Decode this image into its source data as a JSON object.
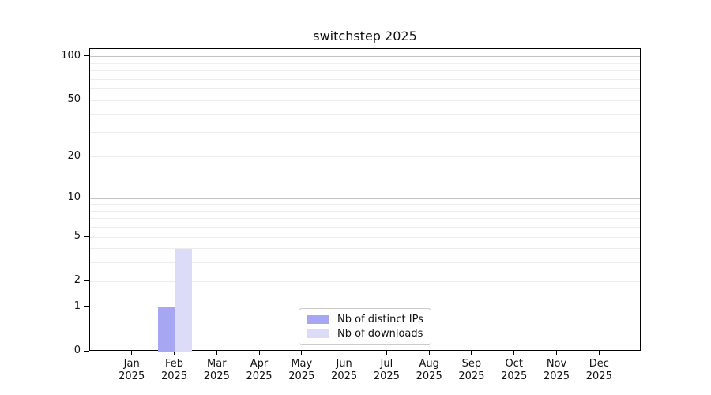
{
  "chart_data": {
    "type": "bar",
    "title": "switchstep 2025",
    "x_axis": {
      "months": [
        "Jan",
        "Feb",
        "Mar",
        "Apr",
        "May",
        "Jun",
        "Jul",
        "Aug",
        "Sep",
        "Oct",
        "Nov",
        "Dec"
      ],
      "year": "2025"
    },
    "y_axis": {
      "scale": "log1p",
      "max": 113,
      "major_ticks": [
        0,
        1,
        2,
        5,
        10,
        20,
        50,
        100
      ],
      "decade_gridlines": [
        1,
        10,
        100
      ],
      "minor_gridlines": [
        3,
        4,
        6,
        7,
        8,
        9,
        30,
        40,
        60,
        70,
        80,
        90
      ]
    },
    "series": [
      {
        "name": "Nb of distinct IPs",
        "color": "#a6a6f2",
        "values": [
          0,
          1,
          0,
          0,
          0,
          0,
          0,
          0,
          0,
          0,
          0,
          0
        ]
      },
      {
        "name": "Nb of downloads",
        "color": "#dcdcf8",
        "values": [
          0,
          4,
          0,
          0,
          0,
          0,
          0,
          0,
          0,
          0,
          0,
          0
        ]
      }
    ],
    "legend_position": "bottom-center"
  }
}
